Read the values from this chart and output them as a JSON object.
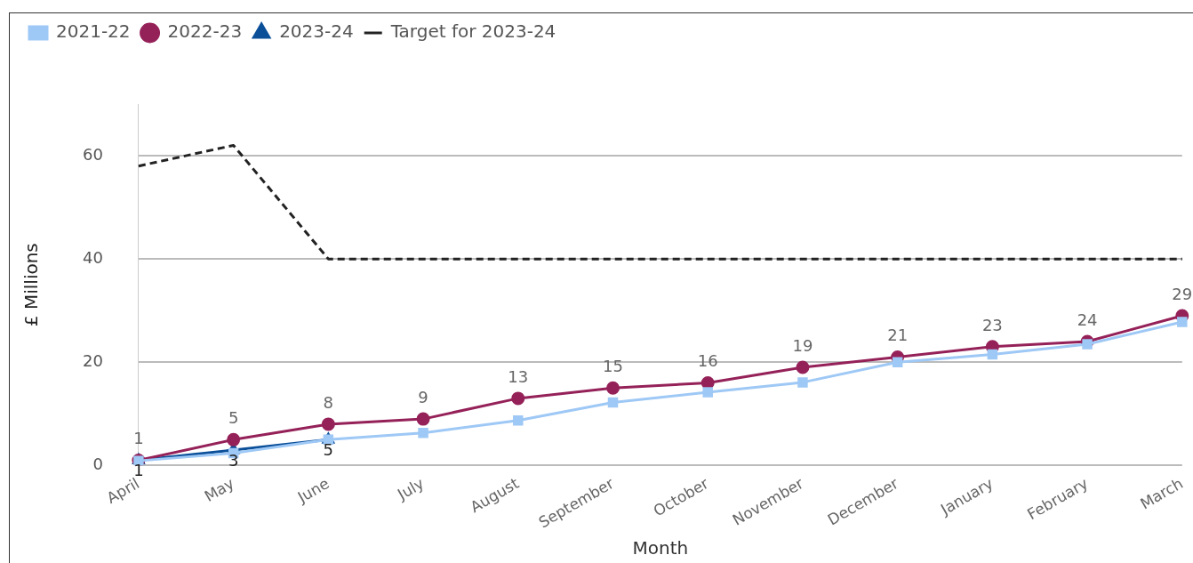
{
  "chart_data": {
    "type": "line",
    "xlabel": "Month",
    "ylabel": "£ Millions",
    "categories": [
      "April",
      "May",
      "June",
      "July",
      "August",
      "September",
      "October",
      "November",
      "December",
      "January",
      "February",
      "March"
    ],
    "ylim": [
      0,
      70
    ],
    "yticks": [
      0,
      20,
      40,
      60
    ],
    "grid": "y",
    "legend": "top left",
    "series": [
      {
        "name": "2021-22",
        "color": "#9ec8f5",
        "marker": "square",
        "values": [
          0.9,
          2.4,
          5,
          6.3,
          8.7,
          12.2,
          14.2,
          16.1,
          20,
          21.5,
          23.5,
          27.8
        ]
      },
      {
        "name": "2022-23",
        "color": "#952159",
        "marker": "circle",
        "values": [
          1,
          5,
          8,
          9,
          13,
          15,
          16,
          19,
          21,
          23,
          24,
          29
        ],
        "value_labels": [
          "1",
          "5",
          "8",
          "9",
          "13",
          "15",
          "16",
          "19",
          "21",
          "23",
          "24",
          "29"
        ]
      },
      {
        "name": "2023-24",
        "color": "#0b4f99",
        "marker": "triangle",
        "values": [
          1,
          3,
          5,
          null,
          null,
          null,
          null,
          null,
          null,
          null,
          null,
          null
        ],
        "value_labels": [
          "1",
          "3",
          "5",
          null,
          null,
          null,
          null,
          null,
          null,
          null,
          null,
          null
        ]
      },
      {
        "name": "Target for 2023-24",
        "color": "#222222",
        "marker": "none",
        "line_style": "dashed",
        "values": [
          58,
          62,
          40,
          40,
          40,
          40,
          40,
          40,
          40,
          40,
          40,
          40
        ]
      }
    ]
  }
}
